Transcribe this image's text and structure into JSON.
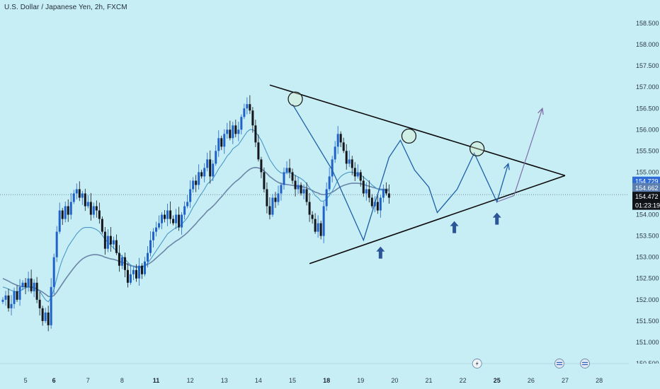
{
  "header": {
    "title": "U.S. Dollar / Japanese Yen, 2h, FXCM"
  },
  "colors": {
    "background": "#c8eef5",
    "bull_candle": "#1f63c9",
    "bear_candle": "#14161c",
    "ema_fast": "#4a98c9",
    "ema_slow": "#6b86a8",
    "pattern_line": "#1f5fa8",
    "projection_line": "#7e6fa8",
    "triangle_line": "#0b0b0b",
    "arrow_marker": "#2b5596",
    "tag_1": "#2f6bd6",
    "tag_2": "#5a7fb0",
    "tag_3": "#101418"
  },
  "chart_data": {
    "type": "candlestick",
    "title": "U.S. Dollar / Japanese Yen, 2h, FXCM",
    "ylim": [
      150.4,
      158.75
    ],
    "y_ticks": [
      "158.500",
      "158.000",
      "157.500",
      "157.000",
      "156.500",
      "156.000",
      "155.500",
      "155.000",
      "154.500",
      "154.000",
      "153.500",
      "153.000",
      "152.500",
      "152.000",
      "151.500",
      "151.000",
      "150.500"
    ],
    "y_tick_values": [
      158.5,
      158.0,
      157.5,
      157.0,
      156.5,
      156.0,
      155.5,
      155.0,
      154.5,
      154.0,
      153.5,
      153.0,
      152.5,
      152.0,
      151.5,
      151.0,
      150.5
    ],
    "x_ticks": [
      {
        "label": "5",
        "bar": 8,
        "bold": false
      },
      {
        "label": "6",
        "bar": 18,
        "bold": true
      },
      {
        "label": "7",
        "bar": 30,
        "bold": false
      },
      {
        "label": "8",
        "bar": 42,
        "bold": false
      },
      {
        "label": "11",
        "bar": 54,
        "bold": true
      },
      {
        "label": "12",
        "bar": 66,
        "bold": false
      },
      {
        "label": "13",
        "bar": 78,
        "bold": false
      },
      {
        "label": "14",
        "bar": 90,
        "bold": false
      },
      {
        "label": "15",
        "bar": 102,
        "bold": false
      },
      {
        "label": "18",
        "bar": 114,
        "bold": true
      },
      {
        "label": "19",
        "bar": 126,
        "bold": false
      },
      {
        "label": "20",
        "bar": 138,
        "bold": false
      },
      {
        "label": "21",
        "bar": 150,
        "bold": false
      },
      {
        "label": "22",
        "bar": 162,
        "bold": false
      },
      {
        "label": "25",
        "bar": 174,
        "bold": true
      },
      {
        "label": "26",
        "bar": 186,
        "bold": false
      },
      {
        "label": "27",
        "bar": 198,
        "bold": false
      },
      {
        "label": "28",
        "bar": 210,
        "bold": false
      }
    ],
    "close": [
      152.0,
      152.1,
      151.8,
      151.9,
      152.2,
      152.0,
      152.3,
      152.4,
      152.3,
      152.5,
      152.2,
      152.4,
      152.0,
      151.8,
      151.5,
      151.7,
      151.4,
      152.3,
      153.0,
      153.6,
      154.1,
      153.9,
      154.2,
      154.0,
      154.3,
      154.5,
      154.6,
      154.4,
      154.5,
      154.2,
      154.3,
      154.0,
      154.2,
      154.1,
      153.9,
      153.6,
      153.2,
      153.5,
      153.3,
      153.4,
      153.1,
      152.8,
      153.0,
      152.7,
      152.4,
      152.6,
      152.7,
      152.5,
      152.8,
      152.6,
      152.9,
      153.1,
      153.4,
      153.6,
      153.7,
      153.8,
      154.0,
      153.9,
      154.1,
      153.9,
      153.8,
      154.0,
      153.7,
      154.0,
      154.2,
      154.3,
      154.6,
      154.8,
      154.7,
      155.0,
      154.9,
      155.1,
      155.3,
      154.9,
      155.2,
      155.5,
      155.8,
      155.6,
      155.9,
      156.0,
      155.8,
      156.1,
      155.9,
      156.0,
      156.3,
      156.5,
      156.6,
      156.45,
      156.1,
      155.7,
      155.3,
      155.0,
      154.6,
      154.2,
      154.0,
      154.4,
      154.3,
      154.5,
      154.7,
      155.0,
      155.1,
      155.0,
      154.8,
      154.6,
      154.7,
      154.5,
      154.6,
      154.3,
      154.0,
      153.9,
      153.6,
      153.8,
      153.5,
      154.2,
      154.6,
      154.9,
      155.3,
      155.6,
      155.9,
      155.7,
      155.5,
      155.2,
      155.3,
      155.1,
      154.9,
      155.0,
      154.8,
      154.5,
      154.6,
      154.4,
      154.2,
      154.3,
      154.1,
      154.4,
      154.6,
      154.5,
      154.4
    ],
    "ema_fast": [
      152.3,
      152.28,
      152.25,
      152.22,
      152.2,
      152.18,
      152.2,
      152.25,
      152.28,
      152.3,
      152.3,
      152.3,
      152.25,
      152.2,
      152.1,
      152.0,
      151.95,
      152.05,
      152.25,
      152.5,
      152.75,
      152.95,
      153.1,
      153.25,
      153.35,
      153.45,
      153.55,
      153.62,
      153.68,
      153.7,
      153.7,
      153.7,
      153.68,
      153.65,
      153.6,
      153.52,
      153.42,
      153.35,
      153.28,
      153.22,
      153.15,
      153.07,
      153.02,
      152.96,
      152.88,
      152.82,
      152.78,
      152.75,
      152.75,
      152.76,
      152.8,
      152.86,
      152.95,
      153.05,
      153.15,
      153.25,
      153.35,
      153.45,
      153.55,
      153.6,
      153.65,
      153.7,
      153.72,
      153.78,
      153.85,
      153.93,
      154.05,
      154.18,
      154.28,
      154.4,
      154.5,
      154.6,
      154.72,
      154.78,
      154.85,
      154.96,
      155.08,
      155.17,
      155.27,
      155.38,
      155.45,
      155.55,
      155.6,
      155.65,
      155.75,
      155.85,
      155.95,
      156.0,
      156.0,
      155.95,
      155.85,
      155.75,
      155.6,
      155.45,
      155.3,
      155.2,
      155.1,
      155.03,
      154.98,
      154.98,
      154.99,
      154.99,
      154.96,
      154.92,
      154.89,
      154.85,
      154.8,
      154.73,
      154.63,
      154.55,
      154.45,
      154.4,
      154.32,
      154.32,
      154.37,
      154.45,
      154.55,
      154.68,
      154.82,
      154.9,
      154.95,
      154.98,
      155.0,
      155.0,
      154.98,
      154.97,
      154.94,
      154.88,
      154.83,
      154.77,
      154.7,
      154.65,
      154.6,
      154.58,
      154.58,
      154.57,
      154.56
    ],
    "ema_slow": [
      152.5,
      152.47,
      152.44,
      152.4,
      152.37,
      152.34,
      152.32,
      152.31,
      152.3,
      152.3,
      152.3,
      152.28,
      152.25,
      152.22,
      152.18,
      152.13,
      152.08,
      152.07,
      152.1,
      152.18,
      152.28,
      152.38,
      152.48,
      152.57,
      152.66,
      152.75,
      152.83,
      152.9,
      152.96,
      153.0,
      153.03,
      153.05,
      153.06,
      153.06,
      153.05,
      153.03,
      153.0,
      152.98,
      152.96,
      152.95,
      152.93,
      152.9,
      152.88,
      152.86,
      152.83,
      152.8,
      152.79,
      152.78,
      152.78,
      152.78,
      152.8,
      152.83,
      152.87,
      152.92,
      152.98,
      153.04,
      153.1,
      153.16,
      153.23,
      153.28,
      153.33,
      153.38,
      153.42,
      153.47,
      153.52,
      153.58,
      153.65,
      153.72,
      153.79,
      153.87,
      153.94,
      154.01,
      154.09,
      154.14,
      154.2,
      154.27,
      154.35,
      154.42,
      154.5,
      154.58,
      154.65,
      154.72,
      154.78,
      154.83,
      154.89,
      154.96,
      155.02,
      155.07,
      155.1,
      155.11,
      155.1,
      155.08,
      155.03,
      154.97,
      154.9,
      154.85,
      154.8,
      154.76,
      154.73,
      154.72,
      154.71,
      154.7,
      154.69,
      154.68,
      154.67,
      154.66,
      154.65,
      154.63,
      154.6,
      154.57,
      154.53,
      154.51,
      154.48,
      154.47,
      154.48,
      154.5,
      154.53,
      154.57,
      154.62,
      154.66,
      154.69,
      154.71,
      154.73,
      154.74,
      154.74,
      154.74,
      154.73,
      154.71,
      154.69,
      154.67,
      154.65,
      154.63,
      154.61,
      154.6,
      154.6,
      154.6,
      154.6
    ],
    "triangle": {
      "upper": [
        {
          "bar": 94,
          "y": 157.05
        },
        {
          "bar": 198,
          "y": 154.92
        }
      ],
      "lower": [
        {
          "bar": 108,
          "y": 152.85
        },
        {
          "bar": 198,
          "y": 154.92
        }
      ]
    },
    "pattern_path": [
      {
        "bar": 102,
        "y": 156.6
      },
      {
        "bar": 116,
        "y": 155.05
      },
      {
        "bar": 127,
        "y": 153.4
      },
      {
        "bar": 136,
        "y": 155.35
      },
      {
        "bar": 140,
        "y": 155.75
      },
      {
        "bar": 145,
        "y": 155.05
      },
      {
        "bar": 150,
        "y": 154.65
      },
      {
        "bar": 153,
        "y": 154.05
      },
      {
        "bar": 160,
        "y": 154.6
      },
      {
        "bar": 166,
        "y": 155.45
      },
      {
        "bar": 174,
        "y": 154.3
      },
      {
        "bar": 178,
        "y": 155.2
      }
    ],
    "projection_path": [
      {
        "bar": 178,
        "y": 155.2
      },
      {
        "bar": 174,
        "y": 154.3
      },
      {
        "bar": 180,
        "y": 154.45
      },
      {
        "bar": 190,
        "y": 156.5
      }
    ],
    "circles": [
      {
        "bar": 103,
        "y": 156.72
      },
      {
        "bar": 143,
        "y": 155.85
      },
      {
        "bar": 167,
        "y": 155.55
      }
    ],
    "up_arrows": [
      {
        "bar": 133,
        "y": 153.25
      },
      {
        "bar": 159,
        "y": 153.85
      },
      {
        "bar": 174,
        "y": 154.05
      }
    ],
    "price_tags": [
      {
        "label": "154.729",
        "value": 154.729,
        "bg": "#2f6bd6",
        "fg": "#ffffff"
      },
      {
        "label": "154.662",
        "value": 154.662,
        "bg": "#5a7fb0",
        "fg": "#ffffff"
      },
      {
        "label": "154.472",
        "value": 154.472,
        "bg": "#101418",
        "fg": "#ffffff"
      },
      {
        "label": "01:23:19",
        "value": 154.265,
        "bg": "#101418",
        "fg": "#ffffff"
      }
    ],
    "current_price": 154.472,
    "grid": false,
    "legend": "none"
  }
}
